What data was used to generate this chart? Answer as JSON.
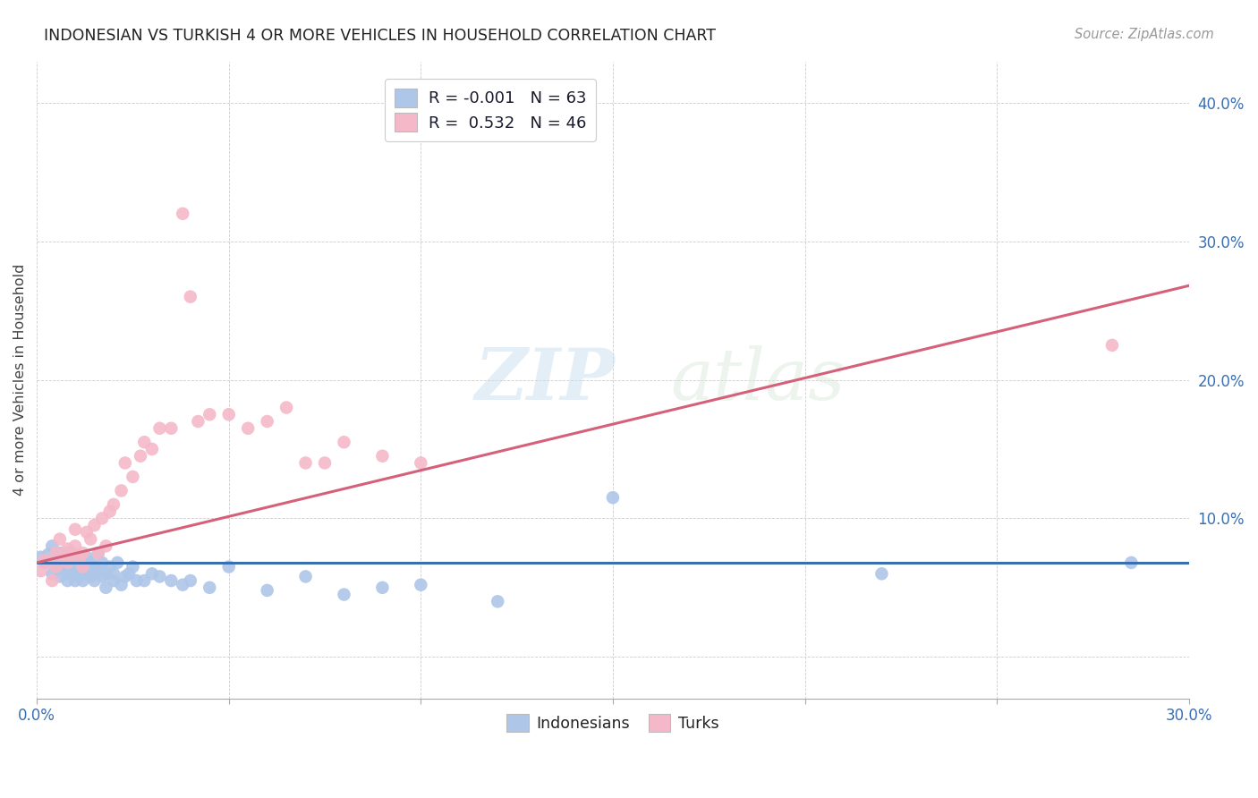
{
  "title": "INDONESIAN VS TURKISH 4 OR MORE VEHICLES IN HOUSEHOLD CORRELATION CHART",
  "source": "Source: ZipAtlas.com",
  "ylabel": "4 or more Vehicles in Household",
  "xlim": [
    0.0,
    0.3
  ],
  "ylim": [
    -0.03,
    0.43
  ],
  "xticks": [
    0.0,
    0.05,
    0.1,
    0.15,
    0.2,
    0.25,
    0.3
  ],
  "yticks": [
    0.0,
    0.1,
    0.2,
    0.3,
    0.4
  ],
  "xticklabels_show": [
    "0.0%",
    "",
    "",
    "",
    "",
    "",
    "30.0%"
  ],
  "yticklabels_show": [
    "",
    "10.0%",
    "20.0%",
    "30.0%",
    "40.0%"
  ],
  "blue_color": "#aec6e8",
  "pink_color": "#f4b8c8",
  "blue_line_color": "#3a6faf",
  "pink_line_color": "#d4607a",
  "blue_R": -0.001,
  "blue_N": 63,
  "pink_R": 0.532,
  "pink_N": 46,
  "watermark_zip": "ZIP",
  "watermark_atlas": "atlas",
  "legend_R_color": "#1a1a2e",
  "legend_N_color": "#3a6faf",
  "indonesian_x": [
    0.001,
    0.002,
    0.003,
    0.004,
    0.004,
    0.005,
    0.005,
    0.006,
    0.006,
    0.007,
    0.007,
    0.007,
    0.008,
    0.008,
    0.008,
    0.009,
    0.009,
    0.01,
    0.01,
    0.01,
    0.011,
    0.011,
    0.011,
    0.012,
    0.012,
    0.013,
    0.013,
    0.014,
    0.014,
    0.015,
    0.015,
    0.016,
    0.016,
    0.017,
    0.017,
    0.018,
    0.018,
    0.019,
    0.02,
    0.02,
    0.021,
    0.022,
    0.023,
    0.024,
    0.025,
    0.026,
    0.028,
    0.03,
    0.032,
    0.035,
    0.038,
    0.04,
    0.045,
    0.05,
    0.06,
    0.07,
    0.08,
    0.09,
    0.1,
    0.12,
    0.15,
    0.22,
    0.285
  ],
  "indonesian_y": [
    0.072,
    0.068,
    0.074,
    0.06,
    0.08,
    0.065,
    0.07,
    0.075,
    0.058,
    0.063,
    0.072,
    0.068,
    0.06,
    0.075,
    0.055,
    0.07,
    0.065,
    0.06,
    0.068,
    0.055,
    0.063,
    0.07,
    0.058,
    0.065,
    0.055,
    0.072,
    0.06,
    0.068,
    0.058,
    0.065,
    0.055,
    0.075,
    0.062,
    0.068,
    0.058,
    0.06,
    0.05,
    0.065,
    0.055,
    0.06,
    0.068,
    0.052,
    0.058,
    0.06,
    0.065,
    0.055,
    0.055,
    0.06,
    0.058,
    0.055,
    0.052,
    0.055,
    0.05,
    0.065,
    0.048,
    0.058,
    0.045,
    0.05,
    0.052,
    0.04,
    0.115,
    0.06,
    0.068
  ],
  "turkish_x": [
    0.001,
    0.002,
    0.003,
    0.004,
    0.005,
    0.005,
    0.006,
    0.007,
    0.008,
    0.008,
    0.009,
    0.01,
    0.01,
    0.011,
    0.012,
    0.012,
    0.013,
    0.014,
    0.015,
    0.016,
    0.017,
    0.018,
    0.019,
    0.02,
    0.022,
    0.023,
    0.025,
    0.027,
    0.028,
    0.03,
    0.032,
    0.035,
    0.038,
    0.04,
    0.042,
    0.045,
    0.05,
    0.055,
    0.06,
    0.065,
    0.07,
    0.075,
    0.08,
    0.09,
    0.1,
    0.28
  ],
  "turkish_y": [
    0.062,
    0.07,
    0.068,
    0.055,
    0.075,
    0.065,
    0.085,
    0.072,
    0.068,
    0.078,
    0.075,
    0.08,
    0.092,
    0.07,
    0.075,
    0.065,
    0.09,
    0.085,
    0.095,
    0.075,
    0.1,
    0.08,
    0.105,
    0.11,
    0.12,
    0.14,
    0.13,
    0.145,
    0.155,
    0.15,
    0.165,
    0.165,
    0.32,
    0.26,
    0.17,
    0.175,
    0.175,
    0.165,
    0.17,
    0.18,
    0.14,
    0.14,
    0.155,
    0.145,
    0.14,
    0.225
  ],
  "pink_line_x0": 0.0,
  "pink_line_y0": 0.068,
  "pink_line_x1": 0.3,
  "pink_line_y1": 0.268,
  "blue_line_x0": 0.0,
  "blue_line_y0": 0.068,
  "blue_line_x1": 0.3,
  "blue_line_y1": 0.068
}
